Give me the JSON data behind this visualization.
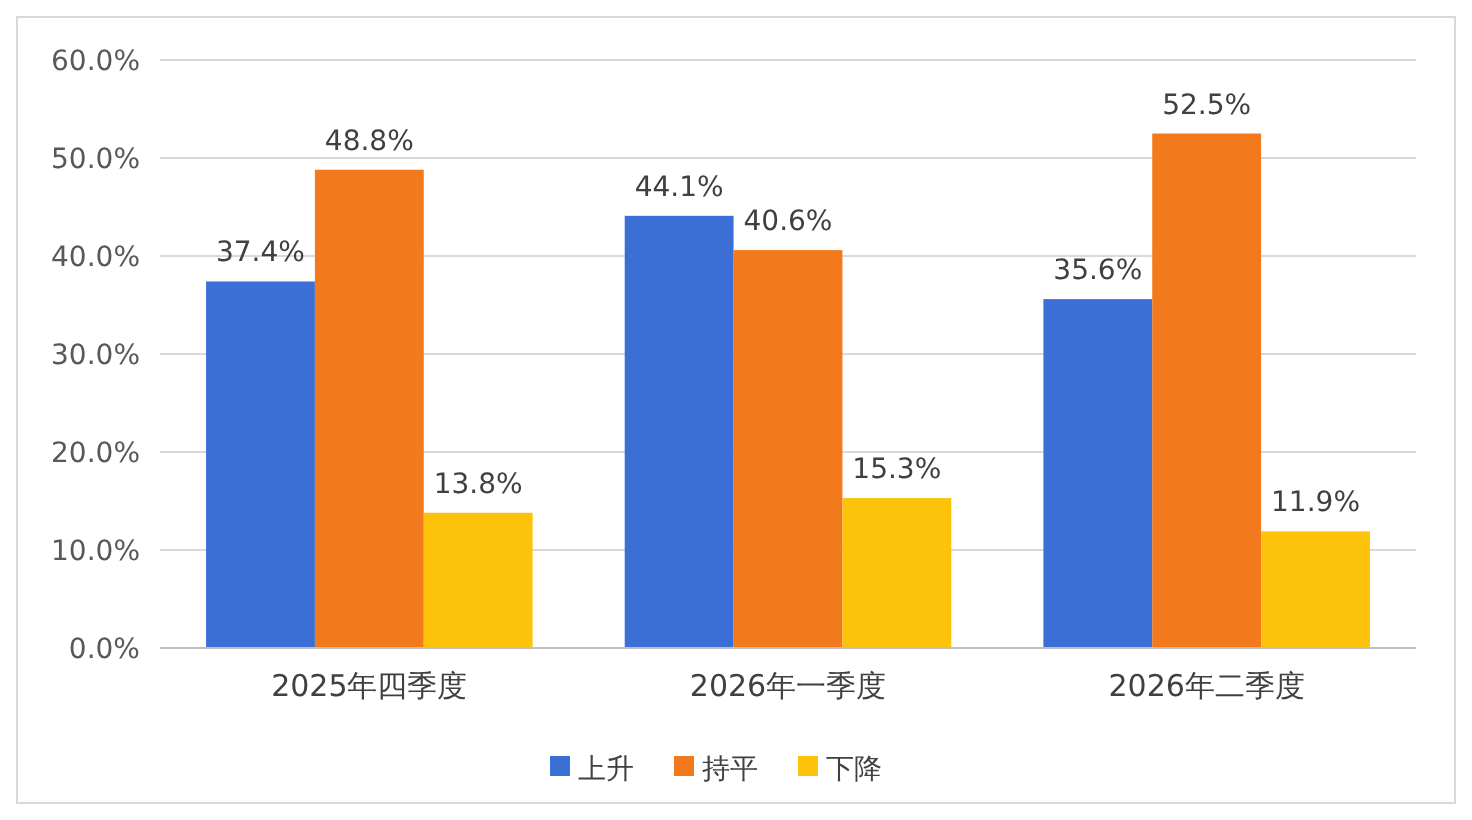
{
  "chart_data": {
    "type": "bar",
    "categories": [
      "2025年四季度",
      "2026年一季度",
      "2026年二季度"
    ],
    "series": [
      {
        "name": "上升",
        "color": "#3b6fd6",
        "values": [
          37.4,
          44.1,
          35.6
        ],
        "value_labels": [
          "37.4%",
          "44.1%",
          "35.6%"
        ]
      },
      {
        "name": "持平",
        "color": "#f27a1c",
        "values": [
          48.8,
          40.6,
          52.5
        ],
        "value_labels": [
          "48.8%",
          "40.6%",
          "52.5%"
        ]
      },
      {
        "name": "下降",
        "color": "#fdc20a",
        "values": [
          13.8,
          15.3,
          11.9
        ],
        "value_labels": [
          "13.8%",
          "15.3%",
          "11.9%"
        ]
      }
    ],
    "ylim": [
      0,
      60
    ],
    "yticks": [
      {
        "value": 0,
        "label": "0.0%"
      },
      {
        "value": 10,
        "label": "10.0%"
      },
      {
        "value": 20,
        "label": "20.0%"
      },
      {
        "value": 30,
        "label": "30.0%"
      },
      {
        "value": 40,
        "label": "40.0%"
      },
      {
        "value": 50,
        "label": "50.0%"
      },
      {
        "value": 60,
        "label": "60.0%"
      }
    ],
    "grid": "y",
    "legend": "bottom"
  }
}
